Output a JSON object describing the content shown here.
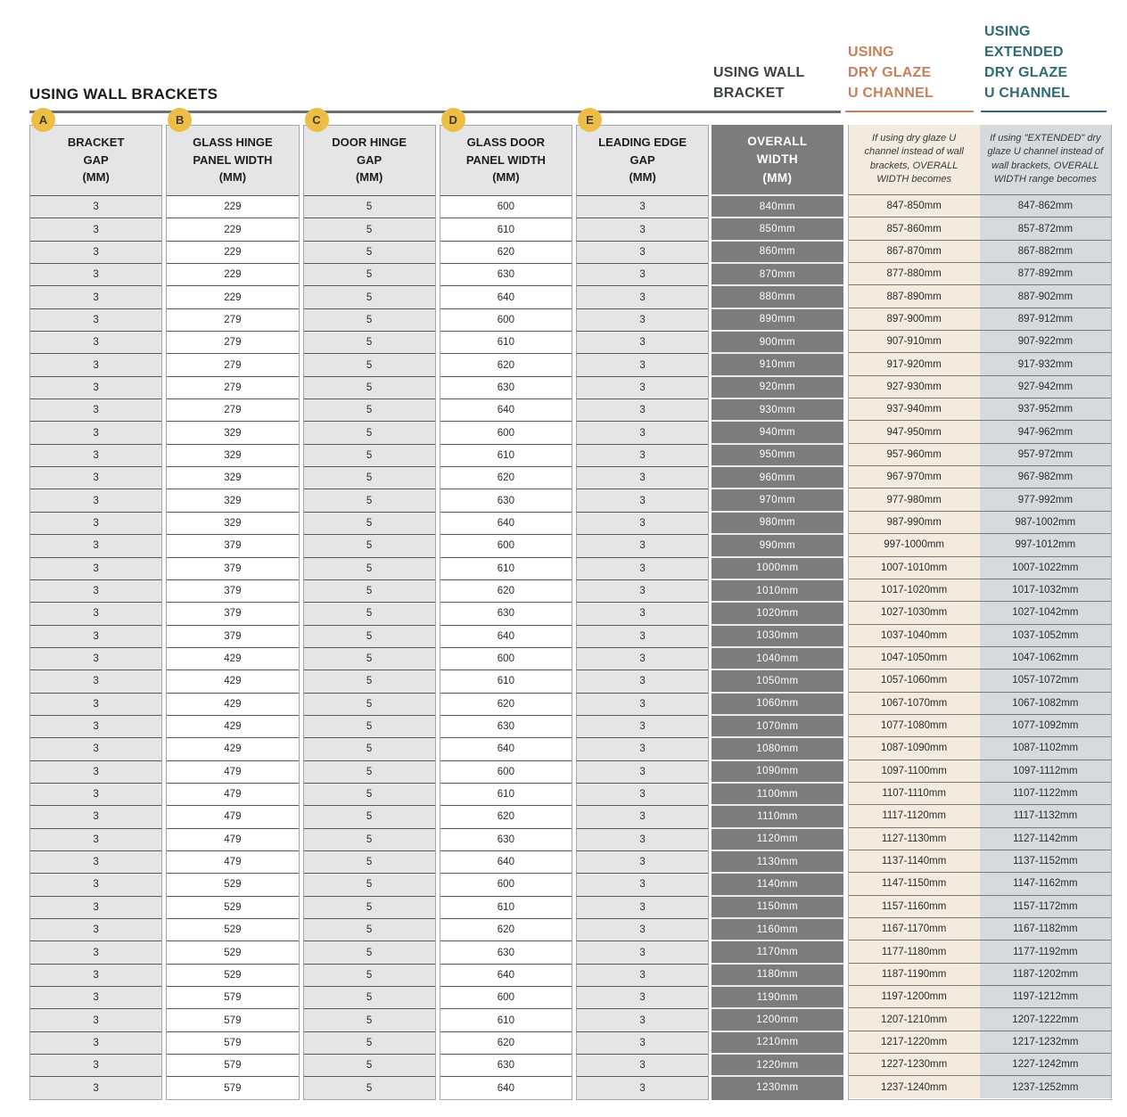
{
  "page": {
    "title": "USING WALL BRACKETS"
  },
  "group_headers": {
    "wall_bracket": "USING WALL\nBRACKET",
    "dry_glaze": "USING\nDRY GLAZE\nU CHANNEL",
    "extended_dry_glaze": "USING\nEXTENDED\nDRY GLAZE\nU CHANNEL"
  },
  "colors": {
    "badge_yellow": "#edbe46",
    "dry_glaze_orange": "#c5805c",
    "extended_teal": "#2e6b72",
    "wall_bracket_charcoal": "#3d4245",
    "dark_column_bg": "#7c7c7c",
    "cream_column_bg": "#f4ebde",
    "extended_column_bg": "#d5dadd",
    "light_cell_bg": "#e5e5e7"
  },
  "table": {
    "columns": [
      {
        "id": "bracket-gap",
        "type": "light",
        "badge": "A",
        "label": "BRACKET\nGAP\n(MM)"
      },
      {
        "id": "glass-hinge-panel-width",
        "type": "white",
        "badge": "B",
        "label": "GLASS HINGE\nPANEL WIDTH\n(MM)"
      },
      {
        "id": "door-hinge-gap",
        "type": "light",
        "badge": "C",
        "label": "DOOR HINGE\nGAP\n(MM)"
      },
      {
        "id": "glass-door-panel-width",
        "type": "white",
        "badge": "D",
        "label": "GLASS DOOR\nPANEL WIDTH\n(MM)"
      },
      {
        "id": "leading-edge-gap",
        "type": "light",
        "badge": "E",
        "label": "LEADING EDGE\nGAP\n(MM)"
      },
      {
        "id": "overall-width",
        "type": "dark",
        "badge": null,
        "label": "OVERALL\nWIDTH\n(MM)"
      },
      {
        "id": "dry-glaze-width",
        "type": "cream",
        "badge": null,
        "label": "If using dry glaze U channel instead of wall brackets, OVERALL WIDTH becomes"
      },
      {
        "id": "extended-dry-glaze-width",
        "type": "ext",
        "badge": null,
        "label": "If using \"EXTENDED\" dry glaze U channel instead of wall brackets, OVERALL WIDTH range becomes"
      }
    ],
    "rows": [
      [
        "3",
        "229",
        "5",
        "600",
        "3",
        "840mm",
        "847-850mm",
        "847-862mm"
      ],
      [
        "3",
        "229",
        "5",
        "610",
        "3",
        "850mm",
        "857-860mm",
        "857-872mm"
      ],
      [
        "3",
        "229",
        "5",
        "620",
        "3",
        "860mm",
        "867-870mm",
        "867-882mm"
      ],
      [
        "3",
        "229",
        "5",
        "630",
        "3",
        "870mm",
        "877-880mm",
        "877-892mm"
      ],
      [
        "3",
        "229",
        "5",
        "640",
        "3",
        "880mm",
        "887-890mm",
        "887-902mm"
      ],
      [
        "3",
        "279",
        "5",
        "600",
        "3",
        "890mm",
        "897-900mm",
        "897-912mm"
      ],
      [
        "3",
        "279",
        "5",
        "610",
        "3",
        "900mm",
        "907-910mm",
        "907-922mm"
      ],
      [
        "3",
        "279",
        "5",
        "620",
        "3",
        "910mm",
        "917-920mm",
        "917-932mm"
      ],
      [
        "3",
        "279",
        "5",
        "630",
        "3",
        "920mm",
        "927-930mm",
        "927-942mm"
      ],
      [
        "3",
        "279",
        "5",
        "640",
        "3",
        "930mm",
        "937-940mm",
        "937-952mm"
      ],
      [
        "3",
        "329",
        "5",
        "600",
        "3",
        "940mm",
        "947-950mm",
        "947-962mm"
      ],
      [
        "3",
        "329",
        "5",
        "610",
        "3",
        "950mm",
        "957-960mm",
        "957-972mm"
      ],
      [
        "3",
        "329",
        "5",
        "620",
        "3",
        "960mm",
        "967-970mm",
        "967-982mm"
      ],
      [
        "3",
        "329",
        "5",
        "630",
        "3",
        "970mm",
        "977-980mm",
        "977-992mm"
      ],
      [
        "3",
        "329",
        "5",
        "640",
        "3",
        "980mm",
        "987-990mm",
        "987-1002mm"
      ],
      [
        "3",
        "379",
        "5",
        "600",
        "3",
        "990mm",
        "997-1000mm",
        "997-1012mm"
      ],
      [
        "3",
        "379",
        "5",
        "610",
        "3",
        "1000mm",
        "1007-1010mm",
        "1007-1022mm"
      ],
      [
        "3",
        "379",
        "5",
        "620",
        "3",
        "1010mm",
        "1017-1020mm",
        "1017-1032mm"
      ],
      [
        "3",
        "379",
        "5",
        "630",
        "3",
        "1020mm",
        "1027-1030mm",
        "1027-1042mm"
      ],
      [
        "3",
        "379",
        "5",
        "640",
        "3",
        "1030mm",
        "1037-1040mm",
        "1037-1052mm"
      ],
      [
        "3",
        "429",
        "5",
        "600",
        "3",
        "1040mm",
        "1047-1050mm",
        "1047-1062mm"
      ],
      [
        "3",
        "429",
        "5",
        "610",
        "3",
        "1050mm",
        "1057-1060mm",
        "1057-1072mm"
      ],
      [
        "3",
        "429",
        "5",
        "620",
        "3",
        "1060mm",
        "1067-1070mm",
        "1067-1082mm"
      ],
      [
        "3",
        "429",
        "5",
        "630",
        "3",
        "1070mm",
        "1077-1080mm",
        "1077-1092mm"
      ],
      [
        "3",
        "429",
        "5",
        "640",
        "3",
        "1080mm",
        "1087-1090mm",
        "1087-1102mm"
      ],
      [
        "3",
        "479",
        "5",
        "600",
        "3",
        "1090mm",
        "1097-1100mm",
        "1097-1112mm"
      ],
      [
        "3",
        "479",
        "5",
        "610",
        "3",
        "1100mm",
        "1107-1110mm",
        "1107-1122mm"
      ],
      [
        "3",
        "479",
        "5",
        "620",
        "3",
        "1110mm",
        "1117-1120mm",
        "1117-1132mm"
      ],
      [
        "3",
        "479",
        "5",
        "630",
        "3",
        "1120mm",
        "1127-1130mm",
        "1127-1142mm"
      ],
      [
        "3",
        "479",
        "5",
        "640",
        "3",
        "1130mm",
        "1137-1140mm",
        "1137-1152mm"
      ],
      [
        "3",
        "529",
        "5",
        "600",
        "3",
        "1140mm",
        "1147-1150mm",
        "1147-1162mm"
      ],
      [
        "3",
        "529",
        "5",
        "610",
        "3",
        "1150mm",
        "1157-1160mm",
        "1157-1172mm"
      ],
      [
        "3",
        "529",
        "5",
        "620",
        "3",
        "1160mm",
        "1167-1170mm",
        "1167-1182mm"
      ],
      [
        "3",
        "529",
        "5",
        "630",
        "3",
        "1170mm",
        "1177-1180mm",
        "1177-1192mm"
      ],
      [
        "3",
        "529",
        "5",
        "640",
        "3",
        "1180mm",
        "1187-1190mm",
        "1187-1202mm"
      ],
      [
        "3",
        "579",
        "5",
        "600",
        "3",
        "1190mm",
        "1197-1200mm",
        "1197-1212mm"
      ],
      [
        "3",
        "579",
        "5",
        "610",
        "3",
        "1200mm",
        "1207-1210mm",
        "1207-1222mm"
      ],
      [
        "3",
        "579",
        "5",
        "620",
        "3",
        "1210mm",
        "1217-1220mm",
        "1217-1232mm"
      ],
      [
        "3",
        "579",
        "5",
        "630",
        "3",
        "1220mm",
        "1227-1230mm",
        "1227-1242mm"
      ],
      [
        "3",
        "579",
        "5",
        "640",
        "3",
        "1230mm",
        "1237-1240mm",
        "1237-1252mm"
      ]
    ]
  }
}
